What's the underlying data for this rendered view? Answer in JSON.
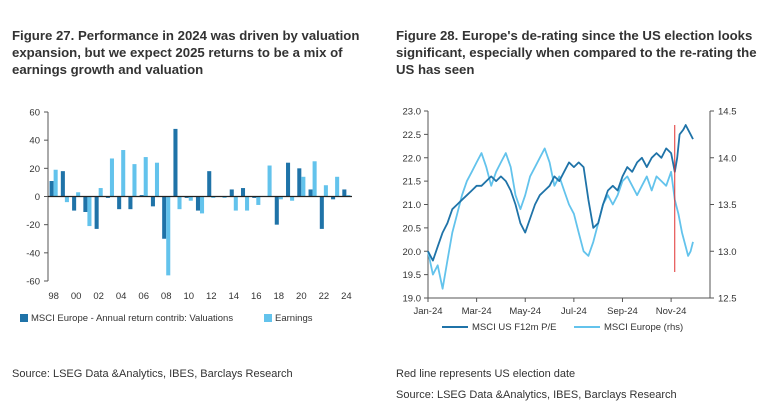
{
  "colors": {
    "dark_teal": "#1f73a8",
    "light_blue": "#63c3ec",
    "election_line": "#e03030",
    "axis": "#555555",
    "text": "#333333"
  },
  "left": {
    "title": "Figure 27. Performance in 2024 was driven by valuation expansion, but we expect 2025 returns to be a mix of earnings growth and valuation",
    "source": "Source: LSEG Data &Analytics, IBES, Barclays Research"
  },
  "right": {
    "title": "Figure 28. Europe's de-rating since the US election looks significant, especially when compared to the re-rating the US has seen",
    "note": "Red line represents US election date",
    "source": "Source: LSEG Data &Analytics, IBES, Barclays Research"
  },
  "chart_data": [
    {
      "type": "bar",
      "title": "",
      "categories": [
        "98",
        "99",
        "00",
        "01",
        "02",
        "03",
        "04",
        "05",
        "06",
        "07",
        "08",
        "09",
        "10",
        "11",
        "12",
        "13",
        "14",
        "15",
        "16",
        "17",
        "18",
        "19",
        "20",
        "21",
        "22",
        "23",
        "24"
      ],
      "x_tick_labels": [
        "98",
        "00",
        "02",
        "04",
        "06",
        "08",
        "10",
        "12",
        "14",
        "16",
        "18",
        "20",
        "22",
        "24"
      ],
      "y_ticks": [
        -60,
        -40,
        -20,
        0,
        20,
        40,
        60
      ],
      "ylim": [
        -60,
        60
      ],
      "grid": false,
      "legend_position": "bottom",
      "series": [
        {
          "name": "MSCI Europe - Annual return contrib: Valuations",
          "color": "#1f73a8",
          "values": [
            11,
            18,
            -10,
            -11,
            -23,
            -1,
            -9,
            -9,
            1,
            -7,
            -30,
            48,
            -1,
            -10,
            18,
            0,
            5,
            6,
            -1,
            0,
            -20,
            24,
            20,
            5,
            -23,
            -2,
            5
          ]
        },
        {
          "name": "Earnings",
          "color": "#63c3ec",
          "values": [
            19,
            -4,
            3,
            -21,
            6,
            27,
            33,
            23,
            28,
            24,
            -56,
            -9,
            -3,
            -12,
            -1,
            -1,
            -10,
            -10,
            -6,
            22,
            -2,
            -3,
            14,
            25,
            8,
            14,
            1
          ]
        }
      ]
    },
    {
      "type": "line",
      "x_tick_labels": [
        "Jan-24",
        "Mar-24",
        "May-24",
        "Jul-24",
        "Sep-24",
        "Nov-24"
      ],
      "x_range_months": [
        0,
        11.6
      ],
      "election_month": 10.15,
      "y_left_ticks": [
        19.0,
        19.5,
        20.0,
        20.5,
        21.0,
        21.5,
        22.0,
        22.5,
        23.0
      ],
      "y_left_lim": [
        19.0,
        23.0
      ],
      "y_right_ticks": [
        12.5,
        13.0,
        13.5,
        14.0,
        14.5
      ],
      "y_right_lim": [
        12.5,
        14.5
      ],
      "legend_position": "bottom",
      "series": [
        {
          "name": "MSCI US F12m P/E",
          "axis": "left",
          "color": "#1f73a8",
          "x": [
            0,
            0.2,
            0.4,
            0.6,
            0.8,
            1.0,
            1.2,
            1.4,
            1.6,
            1.8,
            2.0,
            2.2,
            2.4,
            2.6,
            2.8,
            3.0,
            3.2,
            3.4,
            3.6,
            3.8,
            4.0,
            4.2,
            4.4,
            4.6,
            4.8,
            5.0,
            5.2,
            5.4,
            5.6,
            5.8,
            6.0,
            6.2,
            6.4,
            6.6,
            6.8,
            7.0,
            7.2,
            7.4,
            7.6,
            7.8,
            8.0,
            8.2,
            8.4,
            8.6,
            8.8,
            9.0,
            9.2,
            9.4,
            9.6,
            9.8,
            10.0,
            10.15,
            10.25,
            10.35,
            10.5,
            10.6,
            10.7,
            10.8,
            10.9
          ],
          "y": [
            20.0,
            19.8,
            20.1,
            20.4,
            20.6,
            20.9,
            21.0,
            21.1,
            21.2,
            21.3,
            21.4,
            21.4,
            21.5,
            21.6,
            21.5,
            21.6,
            21.5,
            21.3,
            21.0,
            20.6,
            20.4,
            20.7,
            21.0,
            21.2,
            21.3,
            21.4,
            21.6,
            21.5,
            21.7,
            21.9,
            21.8,
            21.9,
            21.8,
            21.1,
            20.5,
            20.6,
            21.0,
            21.3,
            21.4,
            21.3,
            21.6,
            21.8,
            21.7,
            21.9,
            22.0,
            21.8,
            22.0,
            22.1,
            22.0,
            22.2,
            22.1,
            21.7,
            22.0,
            22.5,
            22.6,
            22.7,
            22.6,
            22.5,
            22.4
          ]
        },
        {
          "name": "MSCI Europe (rhs)",
          "axis": "right",
          "color": "#63c3ec",
          "x": [
            0,
            0.2,
            0.4,
            0.6,
            0.8,
            1.0,
            1.2,
            1.4,
            1.6,
            1.8,
            2.0,
            2.2,
            2.4,
            2.6,
            2.8,
            3.0,
            3.2,
            3.4,
            3.6,
            3.8,
            4.0,
            4.2,
            4.4,
            4.6,
            4.8,
            5.0,
            5.2,
            5.4,
            5.6,
            5.8,
            6.0,
            6.2,
            6.4,
            6.6,
            6.8,
            7.0,
            7.2,
            7.4,
            7.6,
            7.8,
            8.0,
            8.2,
            8.4,
            8.6,
            8.8,
            9.0,
            9.2,
            9.4,
            9.6,
            9.8,
            10.0,
            10.15,
            10.3,
            10.45,
            10.6,
            10.7,
            10.8,
            10.9
          ],
          "y": [
            13.0,
            12.75,
            12.85,
            12.6,
            12.9,
            13.2,
            13.4,
            13.6,
            13.75,
            13.85,
            13.95,
            14.05,
            13.9,
            13.7,
            13.85,
            13.95,
            14.05,
            13.9,
            13.6,
            13.45,
            13.6,
            13.8,
            13.9,
            14.0,
            14.1,
            13.95,
            13.7,
            13.8,
            13.65,
            13.5,
            13.4,
            13.2,
            13.0,
            12.95,
            13.1,
            13.3,
            13.5,
            13.6,
            13.5,
            13.6,
            13.75,
            13.8,
            13.7,
            13.6,
            13.7,
            13.8,
            13.65,
            13.8,
            13.75,
            13.7,
            13.85,
            13.55,
            13.4,
            13.2,
            13.05,
            12.95,
            13.0,
            13.1
          ]
        }
      ]
    }
  ]
}
